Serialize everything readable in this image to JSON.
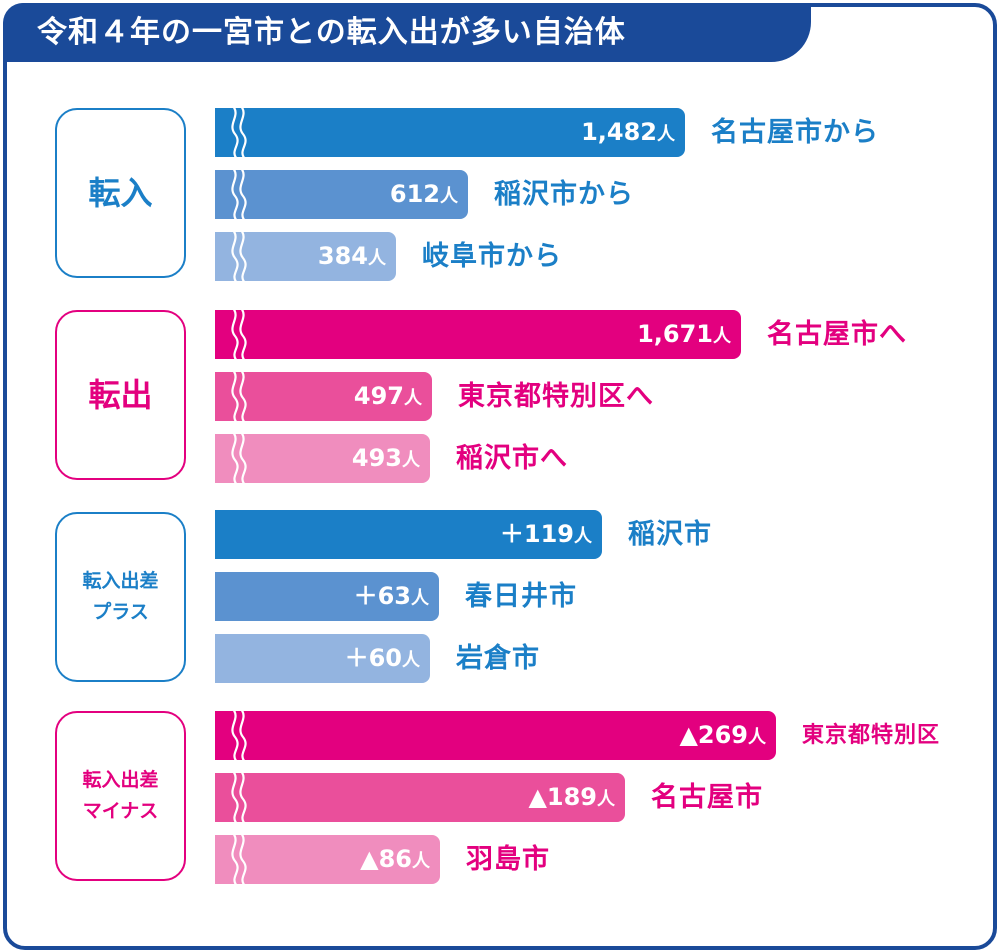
{
  "title": "令和４年の一宮市との転入出が多い自治体",
  "colors": {
    "frame": "#1a4a99",
    "blue_1": "#1b7fc7",
    "blue_2": "#5b92d0",
    "blue_3": "#93b4e0",
    "pink_1": "#e3007f",
    "pink_2": "#ea4f9b",
    "pink_3": "#f08dbe"
  },
  "chart_data": {
    "type": "bar",
    "orientation": "horizontal",
    "unit": "人",
    "axis_break": true,
    "groups": [
      {
        "label_lines": [
          "転入"
        ],
        "theme": "blue",
        "broken": true,
        "bars": [
          {
            "value_text": "1,482",
            "value": 1482,
            "label": "名古屋市から"
          },
          {
            "value_text": "612",
            "value": 612,
            "label": "稲沢市から"
          },
          {
            "value_text": "384",
            "value": 384,
            "label": "岐阜市から"
          }
        ]
      },
      {
        "label_lines": [
          "転出"
        ],
        "theme": "pink",
        "broken": true,
        "bars": [
          {
            "value_text": "1,671",
            "value": 1671,
            "label": "名古屋市へ"
          },
          {
            "value_text": "497",
            "value": 497,
            "label": "東京都特別区へ"
          },
          {
            "value_text": "493",
            "value": 493,
            "label": "稲沢市へ"
          }
        ]
      },
      {
        "label_lines": [
          "転入出差",
          "プラス"
        ],
        "theme": "blue",
        "broken": false,
        "bars": [
          {
            "value_text": "＋119",
            "value": 119,
            "label": "稲沢市"
          },
          {
            "value_text": "＋63",
            "value": 63,
            "label": "春日井市"
          },
          {
            "value_text": "＋60",
            "value": 60,
            "label": "岩倉市"
          }
        ]
      },
      {
        "label_lines": [
          "転入出差",
          "マイナス"
        ],
        "theme": "pink",
        "broken": true,
        "bars": [
          {
            "value_text": "▲269",
            "value": -269,
            "label": "東京都特別区"
          },
          {
            "value_text": "▲189",
            "value": -189,
            "label": "名古屋市"
          },
          {
            "value_text": "▲86",
            "value": -86,
            "label": "羽島市"
          }
        ]
      }
    ]
  }
}
